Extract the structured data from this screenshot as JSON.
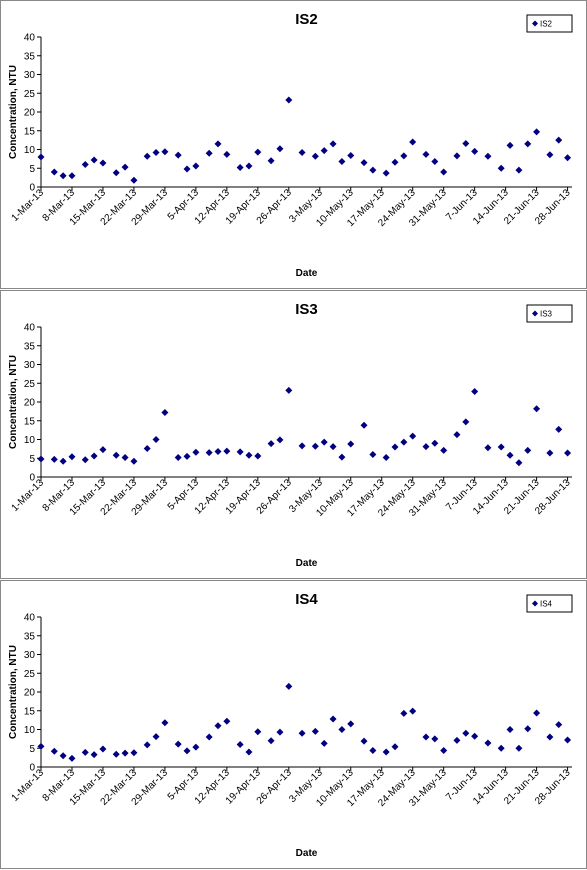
{
  "chart_data": [
    {
      "type": "scatter",
      "title": "IS2",
      "x_label": "Date",
      "y_label": "Concentration, NTU",
      "x": [
        "1-Mar-13",
        "4-Mar-13",
        "6-Mar-13",
        "8-Mar-13",
        "11-Mar-13",
        "13-Mar-13",
        "15-Mar-13",
        "18-Mar-13",
        "20-Mar-13",
        "22-Mar-13",
        "25-Mar-13",
        "27-Mar-13",
        "29-Mar-13",
        "1-Apr-13",
        "3-Apr-13",
        "5-Apr-13",
        "8-Apr-13",
        "10-Apr-13",
        "12-Apr-13",
        "15-Apr-13",
        "17-Apr-13",
        "19-Apr-13",
        "22-Apr-13",
        "24-Apr-13",
        "26-Apr-13",
        "29-Apr-13",
        "2-May-13",
        "4-May-13",
        "6-May-13",
        "8-May-13",
        "10-May-13",
        "13-May-13",
        "15-May-13",
        "18-May-13",
        "20-May-13",
        "22-May-13",
        "24-May-13",
        "27-May-13",
        "29-May-13",
        "31-May-13",
        "3-Jun-13",
        "5-Jun-13",
        "7-Jun-13",
        "10-Jun-13",
        "13-Jun-13",
        "15-Jun-13",
        "17-Jun-13",
        "19-Jun-13",
        "21-Jun-13",
        "24-Jun-13",
        "26-Jun-13",
        "28-Jun-13"
      ],
      "series": [
        {
          "name": "IS2",
          "color": "#000080",
          "values": [
            8,
            4,
            3,
            3,
            6,
            7.2,
            6.4,
            3.8,
            5.3,
            1.8,
            8.2,
            9.2,
            9.4,
            8.5,
            4.8,
            5.6,
            9,
            11.5,
            8.7,
            5.2,
            5.6,
            9.3,
            7,
            10.2,
            23.2,
            9.2,
            8.2,
            9.7,
            11.5,
            6.8,
            8.4,
            6.5,
            4.5,
            3.7,
            6.6,
            8.3,
            12,
            8.7,
            6.8,
            4,
            8.3,
            11.6,
            9.5,
            8.2,
            5,
            11.1,
            4.5,
            11.5,
            14.7,
            8.6,
            12.5,
            7.8
          ]
        }
      ],
      "xlim": [
        "1-Mar-13",
        "29-Jun-13"
      ],
      "xticks": [
        "1-Mar-13",
        "8-Mar-13",
        "15-Mar-13",
        "22-Mar-13",
        "29-Mar-13",
        "5-Apr-13",
        "12-Apr-13",
        "19-Apr-13",
        "26-Apr-13",
        "3-May-13",
        "10-May-13",
        "17-May-13",
        "24-May-13",
        "31-May-13",
        "7-Jun-13",
        "14-Jun-13",
        "21-Jun-13",
        "28-Jun-13"
      ],
      "ylim": [
        0,
        40
      ],
      "yticks": [
        0,
        5,
        10,
        15,
        20,
        25,
        30,
        35,
        40
      ],
      "legend": "top-right"
    },
    {
      "type": "scatter",
      "title": "IS3",
      "x_label": "Date",
      "y_label": "Concentration, NTU",
      "x": [
        "1-Mar-13",
        "4-Mar-13",
        "6-Mar-13",
        "8-Mar-13",
        "11-Mar-13",
        "13-Mar-13",
        "15-Mar-13",
        "18-Mar-13",
        "20-Mar-13",
        "22-Mar-13",
        "25-Mar-13",
        "27-Mar-13",
        "29-Mar-13",
        "1-Apr-13",
        "3-Apr-13",
        "5-Apr-13",
        "8-Apr-13",
        "10-Apr-13",
        "12-Apr-13",
        "15-Apr-13",
        "17-Apr-13",
        "19-Apr-13",
        "22-Apr-13",
        "24-Apr-13",
        "26-Apr-13",
        "29-Apr-13",
        "2-May-13",
        "4-May-13",
        "6-May-13",
        "8-May-13",
        "10-May-13",
        "13-May-13",
        "15-May-13",
        "18-May-13",
        "20-May-13",
        "22-May-13",
        "24-May-13",
        "27-May-13",
        "29-May-13",
        "31-May-13",
        "3-Jun-13",
        "5-Jun-13",
        "7-Jun-13",
        "10-Jun-13",
        "13-Jun-13",
        "15-Jun-13",
        "17-Jun-13",
        "19-Jun-13",
        "21-Jun-13",
        "24-Jun-13",
        "26-Jun-13",
        "28-Jun-13"
      ],
      "series": [
        {
          "name": "IS3",
          "color": "#000080",
          "values": [
            4.8,
            4.7,
            4.2,
            5.4,
            4.6,
            5.6,
            7.3,
            5.8,
            5.2,
            4.2,
            7.6,
            10,
            17.2,
            5.2,
            5.5,
            6.6,
            6.5,
            6.8,
            6.9,
            6.7,
            5.8,
            5.6,
            8.9,
            9.9,
            23.1,
            8.3,
            8.2,
            9.3,
            8.1,
            5.3,
            8.8,
            13.8,
            6,
            5.2,
            8,
            9.3,
            10.9,
            8.1,
            9,
            7.1,
            11.3,
            14.7,
            22.8,
            7.8,
            8,
            5.8,
            3.8,
            7.1,
            18.2,
            6.4,
            12.7,
            6.4
          ]
        }
      ],
      "xlim": [
        "1-Mar-13",
        "29-Jun-13"
      ],
      "xticks": [
        "1-Mar-13",
        "8-Mar-13",
        "15-Mar-13",
        "22-Mar-13",
        "29-Mar-13",
        "5-Apr-13",
        "12-Apr-13",
        "19-Apr-13",
        "26-Apr-13",
        "3-May-13",
        "10-May-13",
        "17-May-13",
        "24-May-13",
        "31-May-13",
        "7-Jun-13",
        "14-Jun-13",
        "21-Jun-13",
        "28-Jun-13"
      ],
      "ylim": [
        0,
        40
      ],
      "yticks": [
        0,
        5,
        10,
        15,
        20,
        25,
        30,
        35,
        40
      ],
      "legend": "top-right"
    },
    {
      "type": "scatter",
      "title": "IS4",
      "x_label": "Date",
      "y_label": "Concentration, NTU",
      "x": [
        "1-Mar-13",
        "4-Mar-13",
        "6-Mar-13",
        "8-Mar-13",
        "11-Mar-13",
        "13-Mar-13",
        "15-Mar-13",
        "18-Mar-13",
        "20-Mar-13",
        "22-Mar-13",
        "25-Mar-13",
        "27-Mar-13",
        "29-Mar-13",
        "1-Apr-13",
        "3-Apr-13",
        "5-Apr-13",
        "8-Apr-13",
        "10-Apr-13",
        "12-Apr-13",
        "15-Apr-13",
        "17-Apr-13",
        "19-Apr-13",
        "22-Apr-13",
        "24-Apr-13",
        "26-Apr-13",
        "29-Apr-13",
        "2-May-13",
        "4-May-13",
        "6-May-13",
        "8-May-13",
        "10-May-13",
        "13-May-13",
        "15-May-13",
        "18-May-13",
        "20-May-13",
        "22-May-13",
        "24-May-13",
        "27-May-13",
        "29-May-13",
        "31-May-13",
        "3-Jun-13",
        "5-Jun-13",
        "7-Jun-13",
        "10-Jun-13",
        "13-Jun-13",
        "15-Jun-13",
        "17-Jun-13",
        "19-Jun-13",
        "21-Jun-13",
        "24-Jun-13",
        "26-Jun-13",
        "28-Jun-13"
      ],
      "series": [
        {
          "name": "IS4",
          "color": "#000080",
          "values": [
            5.5,
            4.2,
            3,
            2.3,
            3.9,
            3.3,
            4.8,
            3.4,
            3.7,
            3.8,
            5.9,
            8.1,
            11.8,
            6.1,
            4.3,
            5.3,
            8,
            11,
            12.2,
            6,
            4,
            9.4,
            7,
            9.3,
            21.5,
            9,
            9.5,
            6.3,
            12.8,
            10,
            11.5,
            6.9,
            4.4,
            4,
            5.4,
            14.3,
            14.9,
            8,
            7.5,
            4.4,
            7.1,
            9,
            8.2,
            6.4,
            5,
            10,
            5,
            10.2,
            14.4,
            8,
            11.3,
            7.2
          ]
        }
      ],
      "xlim": [
        "1-Mar-13",
        "29-Jun-13"
      ],
      "xticks": [
        "1-Mar-13",
        "8-Mar-13",
        "15-Mar-13",
        "22-Mar-13",
        "29-Mar-13",
        "5-Apr-13",
        "12-Apr-13",
        "19-Apr-13",
        "26-Apr-13",
        "3-May-13",
        "10-May-13",
        "17-May-13",
        "24-May-13",
        "31-May-13",
        "7-Jun-13",
        "14-Jun-13",
        "21-Jun-13",
        "28-Jun-13"
      ],
      "ylim": [
        0,
        40
      ],
      "yticks": [
        0,
        5,
        10,
        15,
        20,
        25,
        30,
        35,
        40
      ],
      "legend": "top-right"
    }
  ]
}
